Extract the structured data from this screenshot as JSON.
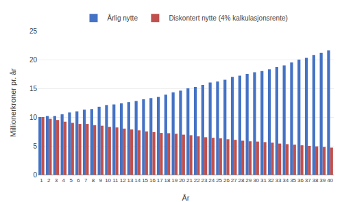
{
  "chart_data": {
    "type": "bar",
    "categories": [
      "1",
      "2",
      "3",
      "4",
      "5",
      "6",
      "7",
      "8",
      "9",
      "10",
      "11",
      "12",
      "13",
      "14",
      "15",
      "16",
      "17",
      "18",
      "19",
      "20",
      "21",
      "22",
      "23",
      "24",
      "25",
      "26",
      "27",
      "28",
      "29",
      "30",
      "31",
      "32",
      "33",
      "34",
      "35",
      "36",
      "37",
      "38",
      "39",
      "40"
    ],
    "series": [
      {
        "name": "Årlig nytte",
        "color": "#4472C4",
        "values": [
          10.0,
          10.2,
          10.2,
          10.5,
          10.8,
          11.0,
          11.3,
          11.4,
          11.8,
          12.1,
          12.2,
          12.4,
          12.6,
          12.8,
          13.1,
          13.3,
          13.5,
          13.9,
          14.3,
          14.6,
          15.0,
          15.25,
          15.6,
          16.0,
          16.2,
          16.5,
          17.0,
          17.2,
          17.5,
          17.8,
          18.0,
          18.3,
          18.7,
          19.0,
          19.5,
          20.0,
          20.3,
          20.8,
          21.2,
          21.6
        ]
      },
      {
        "name": "Diskontert nytte (4% kalkulasjonsrente)",
        "color": "#C0504D",
        "values": [
          10.0,
          9.7,
          9.5,
          9.2,
          9.0,
          8.8,
          8.8,
          8.6,
          8.5,
          8.3,
          8.2,
          8.0,
          7.85,
          7.7,
          7.5,
          7.4,
          7.25,
          7.2,
          7.1,
          6.95,
          6.85,
          6.65,
          6.5,
          6.4,
          6.3,
          6.15,
          6.05,
          5.9,
          5.8,
          5.75,
          5.65,
          5.55,
          5.4,
          5.3,
          5.2,
          5.1,
          5.0,
          4.9,
          4.8,
          4.7
        ]
      }
    ],
    "xlabel": "År",
    "ylabel": "Millionerkroner pr. år",
    "ylim": [
      0,
      25
    ],
    "yticks": [
      0,
      5,
      10,
      15,
      20,
      25
    ],
    "grid": true,
    "legend": "top"
  }
}
